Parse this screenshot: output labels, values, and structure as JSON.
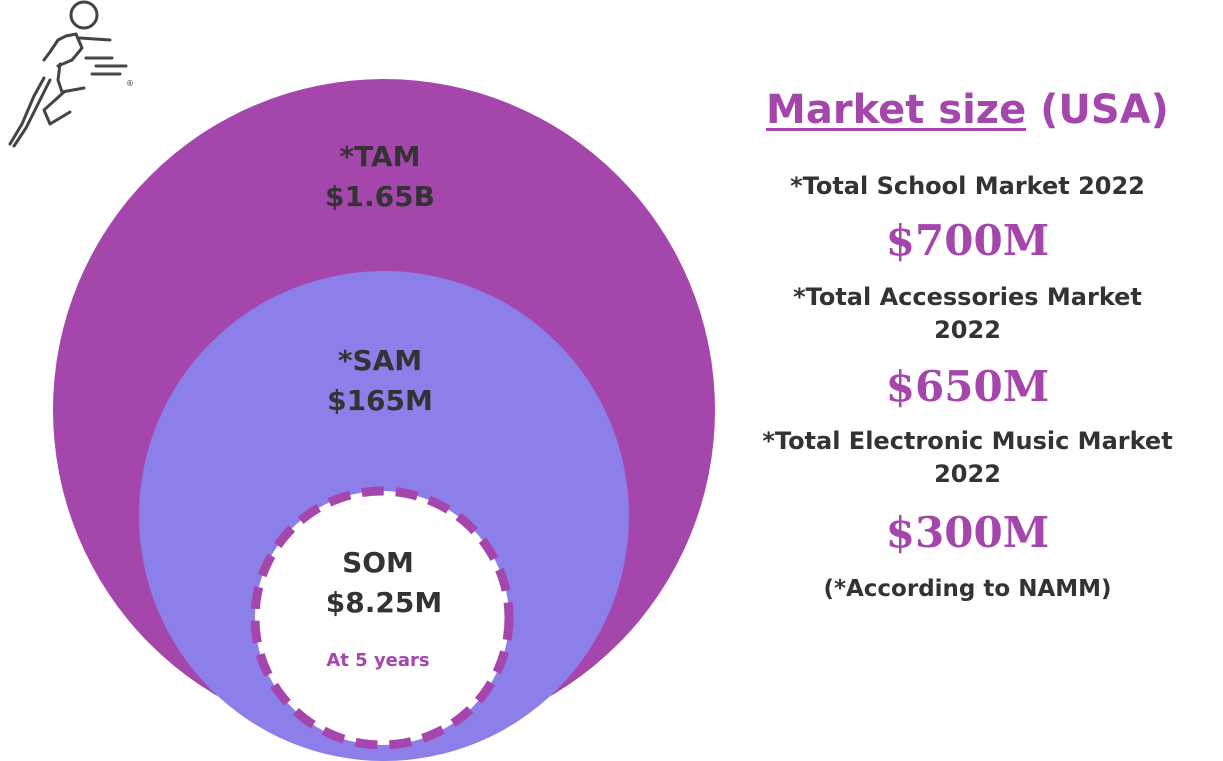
{
  "colors": {
    "tam_fill": "#a546ad",
    "sam_fill": "#8d7fe9",
    "som_fill": "#ffffff",
    "som_border": "#a546ad",
    "text_dark": "#333333",
    "accent": "#a546ad"
  },
  "logo": {
    "icon": "running-figure-logo-icon",
    "mark": "®"
  },
  "circles": {
    "tam": {
      "label": "*TAM",
      "value": "$1.65B"
    },
    "sam": {
      "label": "*SAM",
      "value": "$165M"
    },
    "som": {
      "label": "SOM",
      "value": "$8.25M",
      "note": "At 5 years"
    }
  },
  "panel": {
    "title_underlined": "Market size",
    "title_rest": "(USA)",
    "markets": [
      {
        "label_line1": "*Total School Market 2022",
        "label_line2": "",
        "value": "$700M"
      },
      {
        "label_line1": "*Total Accessories Market",
        "label_line2": "2022",
        "value": "$650M"
      },
      {
        "label_line1": "*Total Electronic Music Market",
        "label_line2": "2022",
        "value": "$300M"
      }
    ],
    "source_note": "(*According to NAMM)"
  }
}
